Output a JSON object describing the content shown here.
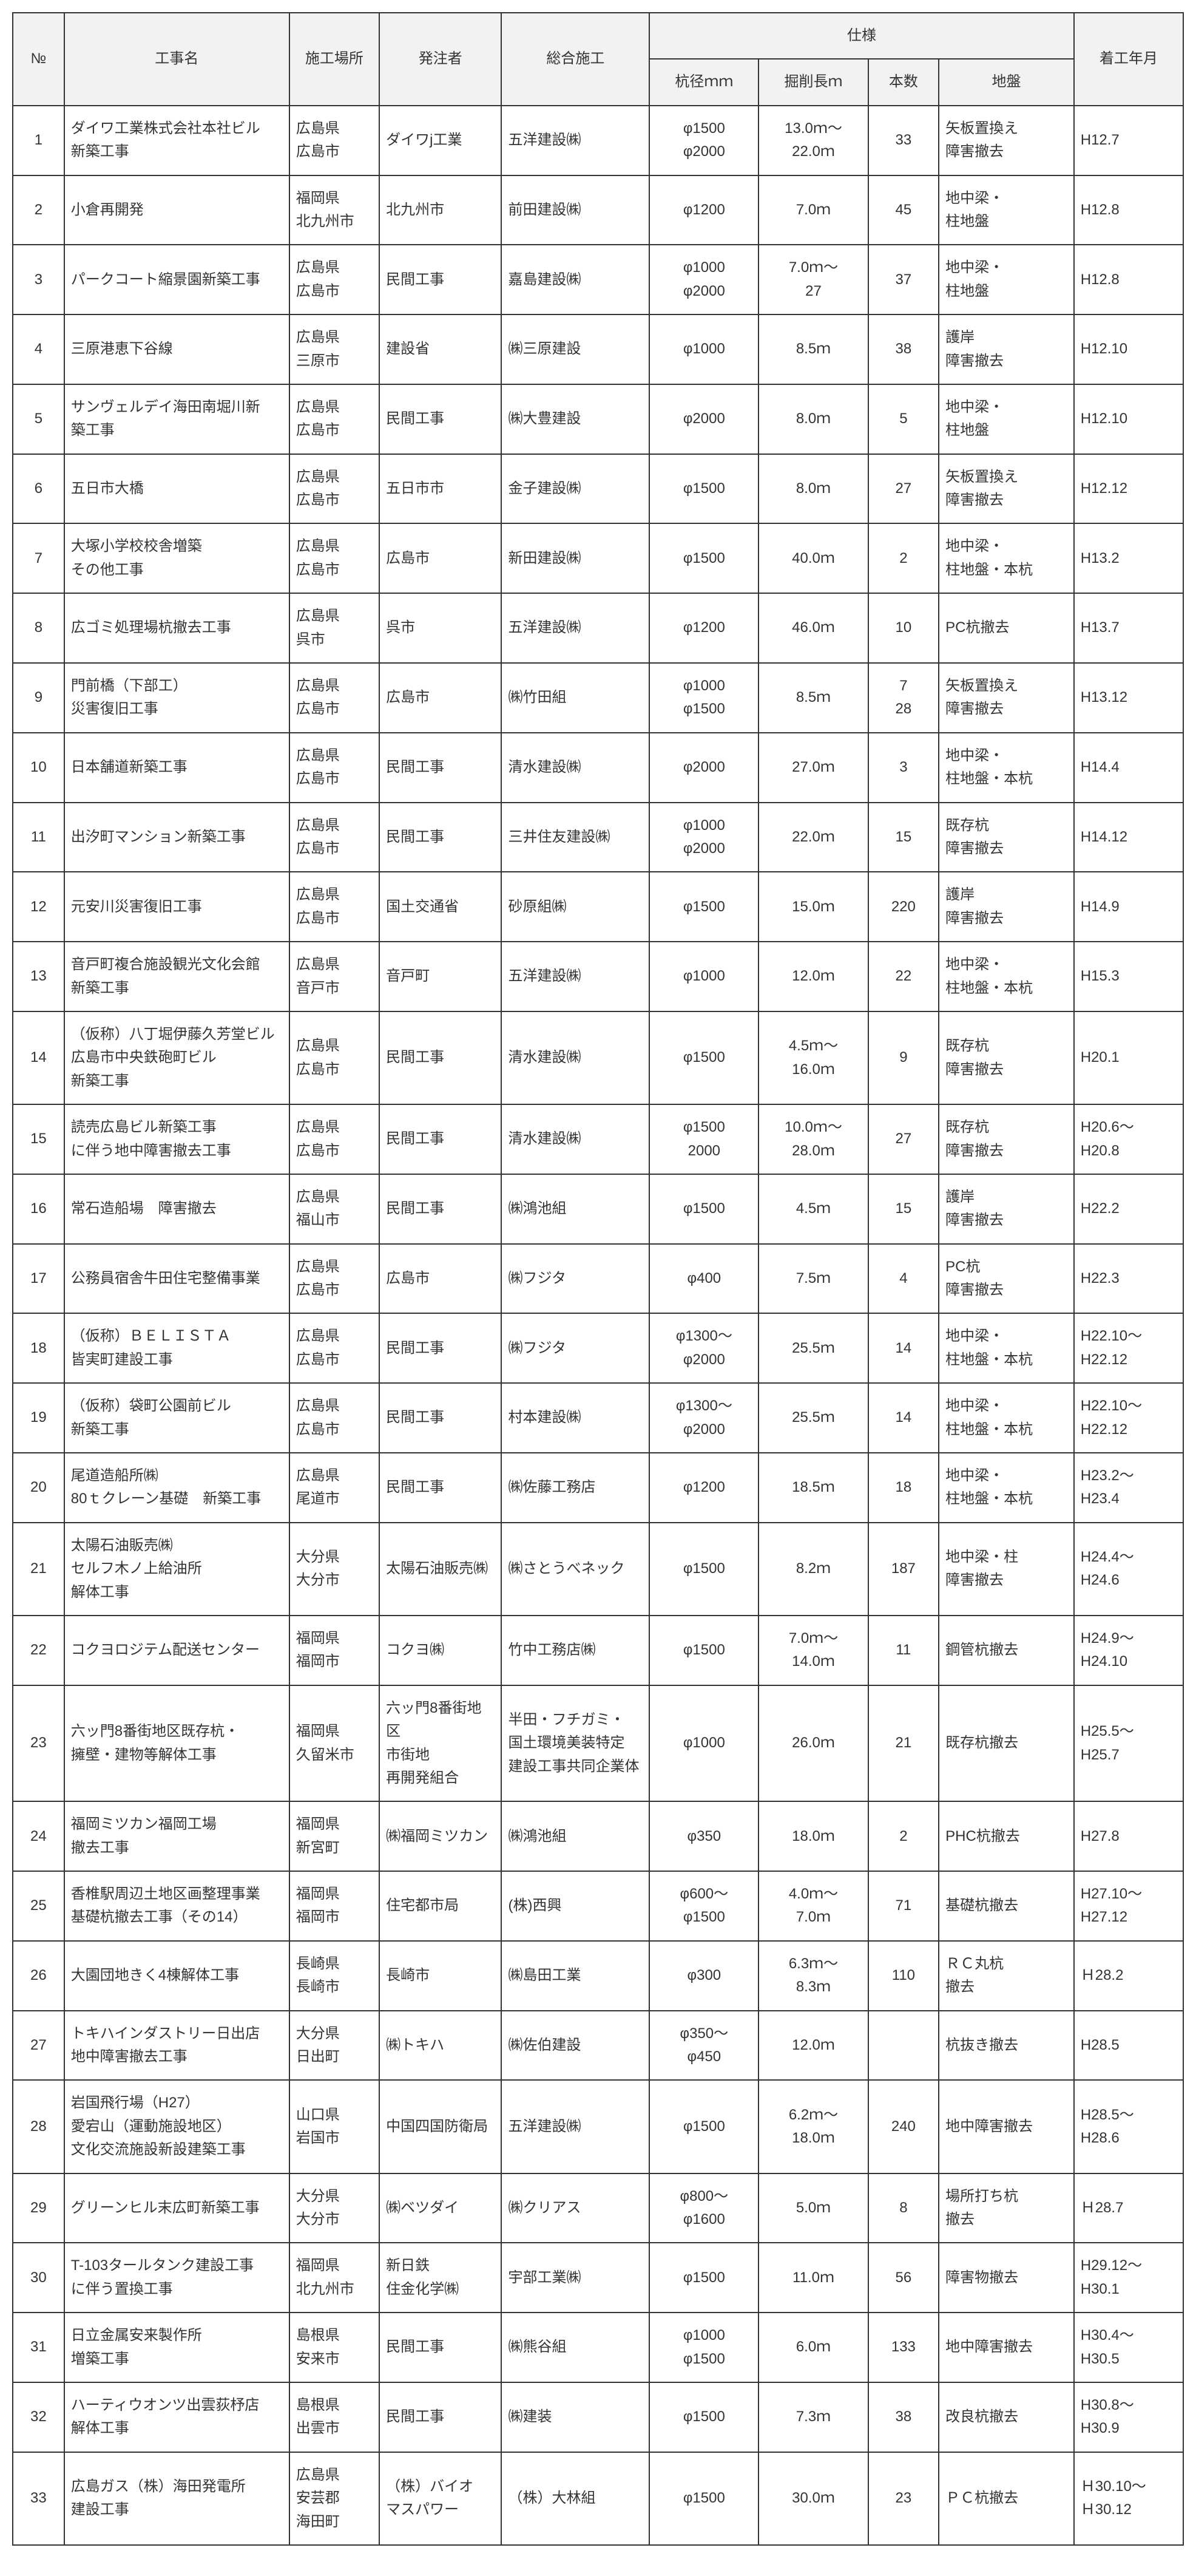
{
  "headers": {
    "no": "№",
    "name": "工事名",
    "location": "施工場所",
    "client": "発注者",
    "contractor": "総合施工",
    "spec_group": "仕様",
    "diameter": "杭径ｍｍ",
    "depth": "掘削長ｍ",
    "count": "本数",
    "ground": "地盤",
    "date": "着工年月"
  },
  "rows": [
    {
      "no": "1",
      "name": "ダイワ工業株式会社本社ビル\n新築工事",
      "location": "広島県\n広島市",
      "client": "ダイワj工業",
      "contractor": "五洋建設㈱",
      "diameter": "φ1500\nφ2000",
      "depth": "13.0ｍ～\n22.0ｍ",
      "count": "33",
      "ground": "矢板置換え\n障害撤去",
      "date": "H12.7"
    },
    {
      "no": "2",
      "name": "小倉再開発",
      "location": "福岡県\n北九州市",
      "client": "北九州市",
      "contractor": "前田建設㈱",
      "diameter": "φ1200",
      "depth": "7.0ｍ",
      "count": "45",
      "ground": "地中梁・\n柱地盤",
      "date": "H12.8"
    },
    {
      "no": "3",
      "name": "パークコート縮景園新築工事",
      "location": "広島県\n広島市",
      "client": "民間工事",
      "contractor": "嘉島建設㈱",
      "diameter": "φ1000\nφ2000",
      "depth": "7.0ｍ～\n27",
      "count": "37",
      "ground": "地中梁・\n柱地盤",
      "date": "H12.8"
    },
    {
      "no": "4",
      "name": "三原港恵下谷線",
      "location": "広島県\n三原市",
      "client": "建設省",
      "contractor": "㈱三原建設",
      "diameter": "φ1000",
      "depth": "8.5ｍ",
      "count": "38",
      "ground": "護岸\n障害撤去",
      "date": "H12.10"
    },
    {
      "no": "5",
      "name": "サンヴェルデイ海田南堀川新\n築工事",
      "location": "広島県\n広島市",
      "client": "民間工事",
      "contractor": "㈱大豊建設",
      "diameter": "φ2000",
      "depth": "8.0ｍ",
      "count": "5",
      "ground": "地中梁・\n柱地盤",
      "date": "H12.10"
    },
    {
      "no": "6",
      "name": "五日市大橋",
      "location": "広島県\n広島市",
      "client": "五日市市",
      "contractor": "金子建設㈱",
      "diameter": "φ1500",
      "depth": "8.0ｍ",
      "count": "27",
      "ground": "矢板置換え\n障害撤去",
      "date": "H12.12"
    },
    {
      "no": "7",
      "name": "大塚小学校校舎増築\nその他工事",
      "location": "広島県\n広島市",
      "client": "広島市",
      "contractor": "新田建設㈱",
      "diameter": "φ1500",
      "depth": "40.0ｍ",
      "count": "2",
      "ground": "地中梁・\n柱地盤・本杭",
      "date": "H13.2"
    },
    {
      "no": "8",
      "name": "広ゴミ処理場杭撤去工事",
      "location": "広島県\n呉市",
      "client": "呉市",
      "contractor": "五洋建設㈱",
      "diameter": "φ1200",
      "depth": "46.0ｍ",
      "count": "10",
      "ground": "PC杭撤去",
      "date": "H13.7"
    },
    {
      "no": "9",
      "name": "門前橋（下部工）\n災害復旧工事",
      "location": "広島県\n広島市",
      "client": "広島市",
      "contractor": "㈱竹田組",
      "diameter": "φ1000\nφ1500",
      "depth": "8.5ｍ",
      "count": "7\n28",
      "ground": "矢板置換え\n障害撤去",
      "date": "H13.12"
    },
    {
      "no": "10",
      "name": "日本舗道新築工事",
      "location": "広島県\n広島市",
      "client": "民間工事",
      "contractor": "清水建設㈱",
      "diameter": "φ2000",
      "depth": "27.0ｍ",
      "count": "3",
      "ground": "地中梁・\n柱地盤・本杭",
      "date": "H14.4"
    },
    {
      "no": "11",
      "name": "出汐町マンション新築工事",
      "location": "広島県\n広島市",
      "client": "民間工事",
      "contractor": "三井住友建設㈱",
      "diameter": "φ1000\nφ2000",
      "depth": "22.0ｍ",
      "count": "15",
      "ground": "既存杭\n障害撤去",
      "date": "H14.12"
    },
    {
      "no": "12",
      "name": "元安川災害復旧工事",
      "location": "広島県\n広島市",
      "client": "国土交通省",
      "contractor": "砂原組㈱",
      "diameter": "φ1500",
      "depth": "15.0ｍ",
      "count": "220",
      "ground": "護岸\n障害撤去",
      "date": "H14.9"
    },
    {
      "no": "13",
      "name": "音戸町複合施設観光文化会館\n新築工事",
      "location": "広島県\n音戸市",
      "client": "音戸町",
      "contractor": "五洋建設㈱",
      "diameter": "φ1000",
      "depth": "12.0ｍ",
      "count": "22",
      "ground": "地中梁・\n柱地盤・本杭",
      "date": "H15.3"
    },
    {
      "no": "14",
      "name": "（仮称）八丁堀伊藤久芳堂ビル\n広島市中央鉄砲町ビル\n新築工事",
      "location": "広島県\n広島市",
      "client": "民間工事",
      "contractor": "清水建設㈱",
      "diameter": "φ1500",
      "depth": "4.5ｍ～\n16.0ｍ",
      "count": "9",
      "ground": "既存杭\n障害撤去",
      "date": "H20.1"
    },
    {
      "no": "15",
      "name": "読売広島ビル新築工事\nに伴う地中障害撤去工事",
      "location": "広島県\n広島市",
      "client": "民間工事",
      "contractor": "清水建設㈱",
      "diameter": "φ1500\n2000",
      "depth": "10.0ｍ～\n28.0ｍ",
      "count": "27",
      "ground": "既存杭\n障害撤去",
      "date": "H20.6～\nH20.8"
    },
    {
      "no": "16",
      "name": "常石造船場　障害撤去",
      "location": "広島県\n福山市",
      "client": "民間工事",
      "contractor": "㈱鴻池組",
      "diameter": "φ1500",
      "depth": "4.5ｍ",
      "count": "15",
      "ground": "護岸\n障害撤去",
      "date": "H22.2"
    },
    {
      "no": "17",
      "name": "公務員宿舎牛田住宅整備事業",
      "location": "広島県\n広島市",
      "client": "広島市",
      "contractor": "㈱フジタ",
      "diameter": "φ400",
      "depth": "7.5ｍ",
      "count": "4",
      "ground": "PC杭\n障害撤去",
      "date": "H22.3"
    },
    {
      "no": "18",
      "name": "（仮称）ＢＥＬＩＳＴＡ\n皆実町建設工事",
      "location": "広島県\n広島市",
      "client": "民間工事",
      "contractor": "㈱フジタ",
      "diameter": "φ1300～\nφ2000",
      "depth": "25.5ｍ",
      "count": "14",
      "ground": "地中梁・\n柱地盤・本杭",
      "date": "H22.10～\nH22.12"
    },
    {
      "no": "19",
      "name": "（仮称）袋町公園前ビル\n新築工事",
      "location": "広島県\n広島市",
      "client": "民間工事",
      "contractor": "村本建設㈱",
      "diameter": "φ1300～\nφ2000",
      "depth": "25.5ｍ",
      "count": "14",
      "ground": "地中梁・\n柱地盤・本杭",
      "date": "H22.10～\nH22.12"
    },
    {
      "no": "20",
      "name": "尾道造船所㈱\n80ｔクレーン基礎　新築工事",
      "location": "広島県\n尾道市",
      "client": "民間工事",
      "contractor": "㈱佐藤工務店",
      "diameter": "φ1200",
      "depth": "18.5ｍ",
      "count": "18",
      "ground": "地中梁・\n柱地盤・本杭",
      "date": "H23.2～\nH23.4"
    },
    {
      "no": "21",
      "name": "太陽石油販売㈱\nセルフ木ノ上給油所\n解体工事",
      "location": "大分県\n大分市",
      "client": "太陽石油販売㈱",
      "contractor": "㈱さとうべネック",
      "diameter": "φ1500",
      "depth": "8.2ｍ",
      "count": "187",
      "ground": "地中梁・柱\n障害撤去",
      "date": "H24.4～\nH24.6"
    },
    {
      "no": "22",
      "name": "コクヨロジテム配送センター",
      "location": "福岡県\n福岡市",
      "client": "コクヨ㈱",
      "contractor": "竹中工務店㈱",
      "diameter": "φ1500",
      "depth": "7.0ｍ～\n14.0ｍ",
      "count": "11",
      "ground": "鋼管杭撤去",
      "date": "H24.9～\nH24.10"
    },
    {
      "no": "23",
      "name": "六ッ門8番街地区既存杭・\n擁壁・建物等解体工事",
      "location": "福岡県\n久留米市",
      "client": "六ッ門8番街地区\n市街地\n再開発組合",
      "contractor": "半田・フチガミ・\n国土環境美装特定\n建設工事共同企業体",
      "diameter": "φ1000",
      "depth": "26.0ｍ",
      "count": "21",
      "ground": "既存杭撤去",
      "date": "H25.5～\nH25.7"
    },
    {
      "no": "24",
      "name": "福岡ミツカン福岡工場\n撤去工事",
      "location": "福岡県\n新宮町",
      "client": "㈱福岡ミツカン",
      "contractor": "㈱鴻池組",
      "diameter": "φ350",
      "depth": "18.0ｍ",
      "count": "2",
      "ground": "PHC杭撤去",
      "date": "H27.8"
    },
    {
      "no": "25",
      "name": "香椎駅周辺土地区画整理事業\n基礎杭撤去工事（その14）",
      "location": "福岡県\n福岡市",
      "client": "住宅都市局",
      "contractor": "(株)西興",
      "diameter": "φ600～\nφ1500",
      "depth": "4.0ｍ～\n7.0ｍ",
      "count": "71",
      "ground": "基礎杭撤去",
      "date": "H27.10～\nH27.12"
    },
    {
      "no": "26",
      "name": "大園団地きく4棟解体工事",
      "location": "長崎県\n長崎市",
      "client": "長崎市",
      "contractor": "㈱島田工業",
      "diameter": "φ300",
      "depth": "6.3ｍ～\n8.3ｍ",
      "count": "110",
      "ground": "ＲＣ丸杭\n撤去",
      "date": "Ｈ28.2"
    },
    {
      "no": "27",
      "name": "トキハインダストリー日出店\n地中障害撤去工事",
      "location": "大分県\n日出町",
      "client": "㈱トキハ",
      "contractor": "㈱佐伯建設",
      "diameter": "φ350～\nφ450",
      "depth": "12.0ｍ",
      "count": "",
      "ground": "杭抜き撤去",
      "date": "H28.5"
    },
    {
      "no": "28",
      "name": "岩国飛行場（H27）\n愛宕山（運動施設地区）\n文化交流施設新設建築工事",
      "location": "山口県\n岩国市",
      "client": "中国四国防衛局",
      "contractor": "五洋建設㈱",
      "diameter": "φ1500",
      "depth": "6.2ｍ～\n18.0ｍ",
      "count": "240",
      "ground": "地中障害撤去",
      "date": "H28.5～\nH28.6"
    },
    {
      "no": "29",
      "name": "グリーンヒル末広町新築工事",
      "location": "大分県\n大分市",
      "client": "㈱ベツダイ",
      "contractor": "㈱クリアス",
      "diameter": "φ800～\nφ1600",
      "depth": "5.0ｍ",
      "count": "8",
      "ground": "場所打ち杭\n撤去",
      "date": "Ｈ28.7"
    },
    {
      "no": "30",
      "name": "T-103タールタンク建設工事\nに伴う置換工事",
      "location": "福岡県\n北九州市",
      "client": "新日鉄\n住金化学㈱",
      "contractor": "宇部工業㈱",
      "diameter": "φ1500",
      "depth": "11.0ｍ",
      "count": "56",
      "ground": "障害物撤去",
      "date": "H29.12～\nH30.1"
    },
    {
      "no": "31",
      "name": "日立金属安来製作所\n増築工事",
      "location": "島根県\n安来市",
      "client": "民間工事",
      "contractor": "㈱熊谷組",
      "diameter": "φ1000\nφ1500",
      "depth": "6.0ｍ",
      "count": "133",
      "ground": "地中障害撤去",
      "date": "H30.4～\nH30.5"
    },
    {
      "no": "32",
      "name": "ハーティウオンツ出雲荻杼店\n解体工事",
      "location": "島根県\n出雲市",
      "client": "民間工事",
      "contractor": "㈱建装",
      "diameter": "φ1500",
      "depth": "7.3ｍ",
      "count": "38",
      "ground": "改良杭撤去",
      "date": "H30.8～\nH30.9"
    },
    {
      "no": "33",
      "name": "広島ガス（株）海田発電所\n建設工事",
      "location": "広島県\n安芸郡\n海田町",
      "client": "（株）バイオ\nマスパワー",
      "contractor": "（株）大林組",
      "diameter": "φ1500",
      "depth": "30.0ｍ",
      "count": "23",
      "ground": "ＰＣ杭撤去",
      "date": "Ｈ30.10～\nＨ30.12"
    }
  ],
  "colors": {
    "border": "#333333",
    "header_bg": "#f2f2f2",
    "text": "#333333",
    "bg": "#ffffff"
  }
}
